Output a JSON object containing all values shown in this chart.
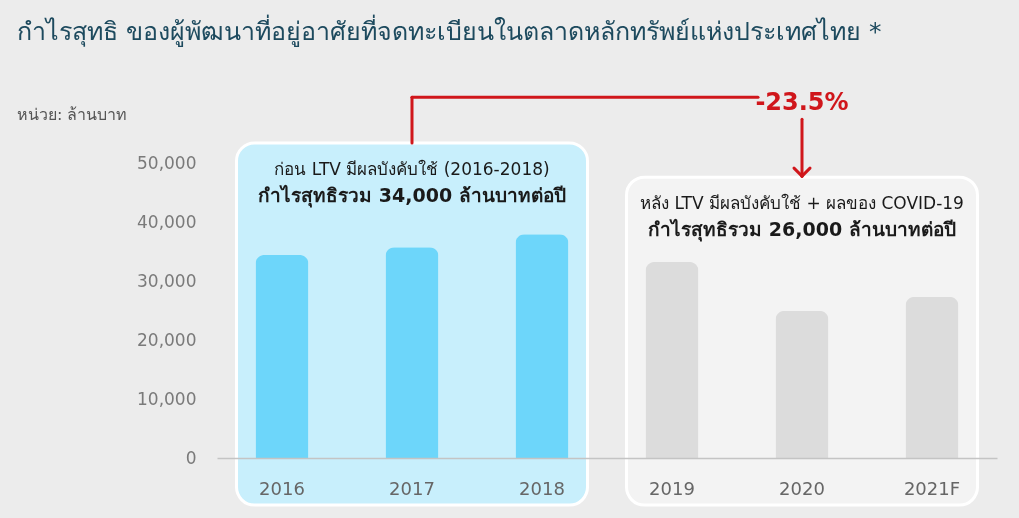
{
  "chart_data": {
    "type": "bar",
    "title": "กำไรสุทธิ ของผู้พัฒนาที่อยู่อาศัยที่จดทะเบียนในตลาดหลักทรัพย์แห่งประเทศไทย *",
    "categories": [
      "2016",
      "2017",
      "2018",
      "2019",
      "2020",
      "2021F"
    ],
    "values": [
      34500,
      35800,
      38000,
      33300,
      25000,
      27400
    ],
    "colors": [
      "#6dd6fa",
      "#6dd6fa",
      "#6dd6fa",
      "#dcdcdc",
      "#dcdcdc",
      "#dcdcdc"
    ],
    "ylim": [
      0,
      53500
    ],
    "yticks": [
      {
        "value": 0,
        "label": "0"
      },
      {
        "value": 10000,
        "label": "10,000"
      },
      {
        "value": 20000,
        "label": "20,000"
      },
      {
        "value": 30000,
        "label": "30,000"
      },
      {
        "value": 40000,
        "label": "40,000"
      },
      {
        "value": 50000,
        "label": "50,000"
      }
    ],
    "grid": false,
    "bands": [
      {
        "axis": "x",
        "from": "2016",
        "to": "2018",
        "label": "ก่อน LTV มีผลบังคับใช้ (2016-2018)\nกำไรสุทธิรวม 34,000 ล้านบาทต่อปี",
        "color": "#c8effc"
      },
      {
        "axis": "x",
        "from": "2019",
        "to": "2021F",
        "label": "หลัง LTV มีผลบังคับใช้ + ผลของ COVID-19\nกำไรสุทธิรวม 26,000 ล้านบาทต่อปี",
        "color": "#f3f3f3"
      }
    ],
    "annotations": [
      "หน่วย: ล้านบาท",
      {
        "text": "-23.5%",
        "x": "2020",
        "y": 47700
      }
    ]
  }
}
